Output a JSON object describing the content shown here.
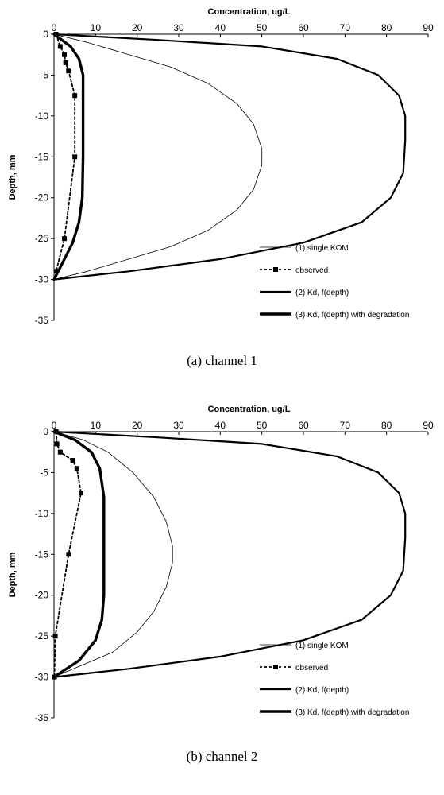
{
  "chart_data": [
    {
      "type": "line",
      "title": "Concentration, ug/L",
      "xlabel": "Concentration, ug/L",
      "ylabel": "Depth, mm",
      "xlim": [
        0,
        90
      ],
      "ylim": [
        -35,
        0
      ],
      "x_ticks": [
        0,
        10,
        20,
        30,
        40,
        50,
        60,
        70,
        80,
        90
      ],
      "y_ticks": [
        0,
        -5,
        -10,
        -15,
        -20,
        -25,
        -30,
        -35
      ],
      "x_axis_position": "top",
      "grid": false,
      "legend_position": "bottom-right",
      "caption": "(a) channel 1",
      "series": [
        {
          "name": "(1) single KOM",
          "style": "thin",
          "x": [
            0,
            8,
            18,
            28,
            37,
            44,
            48,
            50,
            50,
            48,
            44,
            37,
            28,
            18,
            8,
            0
          ],
          "y": [
            0,
            -1,
            -2.5,
            -4,
            -6,
            -8.5,
            -11,
            -14,
            -16,
            -19,
            -21.5,
            -24,
            -26,
            -27.5,
            -29,
            -30
          ]
        },
        {
          "name": "observed",
          "style": "dashed-square",
          "x": [
            0.5,
            1.5,
            2.5,
            2.8,
            3.5,
            5,
            5,
            2.5,
            0.5
          ],
          "y": [
            0,
            -1.5,
            -2.5,
            -3.5,
            -4.5,
            -7.5,
            -15,
            -25,
            -29
          ]
        },
        {
          "name": "(2) Kd, f(depth)",
          "style": "medium",
          "x": [
            0,
            25,
            50,
            68,
            78,
            83,
            84.5,
            84.5,
            84,
            81,
            74,
            60,
            40,
            18,
            0
          ],
          "y": [
            0,
            -0.7,
            -1.5,
            -3,
            -5,
            -7.5,
            -10,
            -13,
            -17,
            -20,
            -23,
            -25.5,
            -27.5,
            -29,
            -30
          ]
        },
        {
          "name": "(3) Kd, f(depth) with degradation",
          "style": "thick",
          "x": [
            0,
            4,
            6,
            7,
            7,
            7,
            6.8,
            6,
            4.5,
            2,
            0
          ],
          "y": [
            0,
            -1.5,
            -3,
            -5,
            -10,
            -15,
            -20,
            -23,
            -25.5,
            -28,
            -30
          ]
        }
      ]
    },
    {
      "type": "line",
      "title": "Concentration, ug/L",
      "xlabel": "Concentration, ug/L",
      "ylabel": "Depth, mm",
      "xlim": [
        0,
        90
      ],
      "ylim": [
        -35,
        0
      ],
      "x_ticks": [
        0,
        10,
        20,
        30,
        40,
        50,
        60,
        70,
        80,
        90
      ],
      "y_ticks": [
        0,
        -5,
        -10,
        -15,
        -20,
        -25,
        -30,
        -35
      ],
      "x_axis_position": "top",
      "grid": false,
      "legend_position": "bottom-right",
      "caption": "(b) channel 2",
      "series": [
        {
          "name": "(1) single KOM",
          "style": "thin",
          "x": [
            0,
            7,
            13,
            19,
            24,
            27,
            28.5,
            28.5,
            27,
            24,
            20,
            14,
            7,
            0
          ],
          "y": [
            0,
            -1,
            -2.5,
            -5,
            -8,
            -11,
            -14,
            -16,
            -19,
            -22,
            -24.5,
            -27,
            -28.5,
            -30
          ]
        },
        {
          "name": "observed",
          "style": "dashed-square",
          "x": [
            0.5,
            0.7,
            1.5,
            4.5,
            5.5,
            6.5,
            3.5,
            0.3,
            0.1
          ],
          "y": [
            0,
            -1.5,
            -2.5,
            -3.5,
            -4.5,
            -7.5,
            -15,
            -25,
            -30
          ]
        },
        {
          "name": "(2) Kd, f(depth)",
          "style": "medium",
          "x": [
            0,
            25,
            50,
            68,
            78,
            83,
            84.5,
            84.5,
            84,
            81,
            74,
            60,
            40,
            18,
            0
          ],
          "y": [
            0,
            -0.7,
            -1.5,
            -3,
            -5,
            -7.5,
            -10,
            -13,
            -17,
            -20,
            -23,
            -25.5,
            -27.5,
            -29,
            -30
          ]
        },
        {
          "name": "(3) Kd, f(depth) with degradation",
          "style": "thick",
          "x": [
            0,
            5,
            9,
            11,
            12,
            12,
            12,
            11.5,
            10,
            6,
            0
          ],
          "y": [
            0,
            -1,
            -2.5,
            -4.5,
            -8,
            -15,
            -20,
            -23,
            -25.5,
            -28,
            -30
          ]
        }
      ]
    }
  ]
}
